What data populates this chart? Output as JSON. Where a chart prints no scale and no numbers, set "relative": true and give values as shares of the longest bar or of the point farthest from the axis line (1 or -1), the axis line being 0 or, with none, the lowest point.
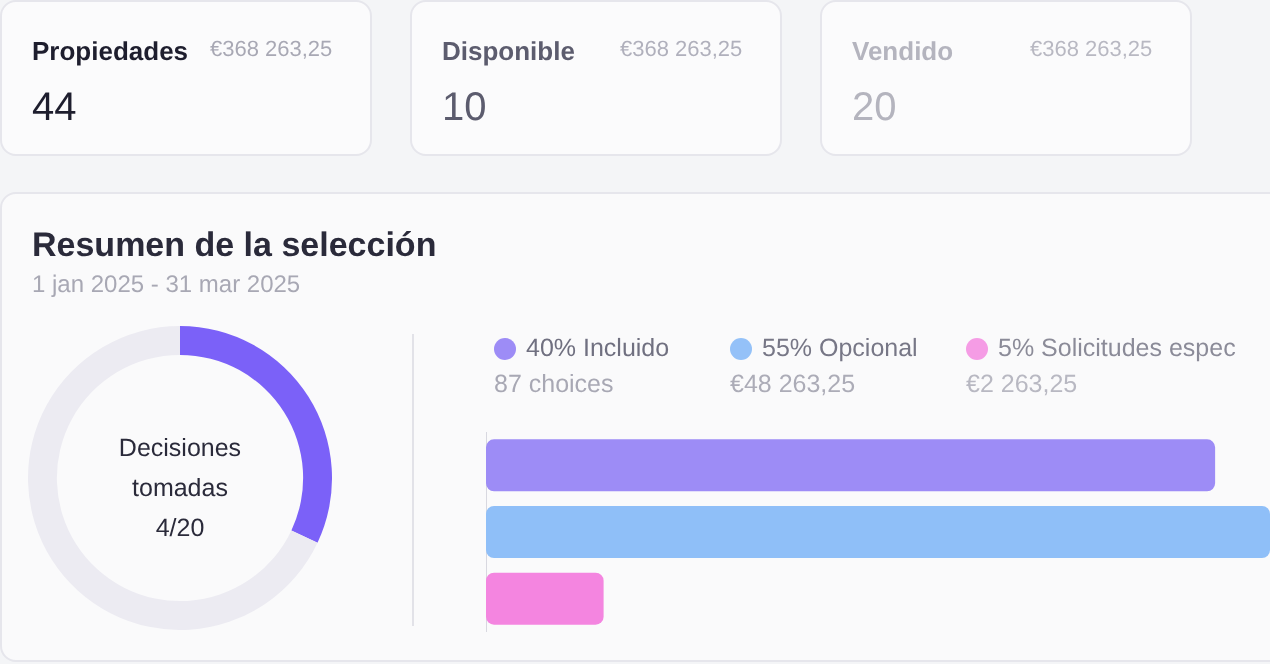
{
  "chart_data": [
    {
      "type": "other",
      "title": "Propiedades",
      "annotations": [
        "€368 263,25",
        "44"
      ]
    },
    {
      "type": "other",
      "title": "Disponible",
      "annotations": [
        "€368 263,25",
        "10"
      ]
    },
    {
      "type": "other",
      "title": "Vendido",
      "annotations": [
        "€368 263,25",
        "20"
      ]
    },
    {
      "type": "donut",
      "title": "Resumen de la selección",
      "subtitle": "1 jan 2025 - 31 mar 2025",
      "categories": [
        null,
        null
      ],
      "values": [
        32,
        68
      ],
      "colors": [
        "#7b61f8",
        "#ecebf2"
      ],
      "annotations": [
        "Decisiones",
        "tomadas",
        "4/20"
      ]
    },
    {
      "type": "bar",
      "orientation": "horizontal",
      "stacked": true,
      "relative": true,
      "categories": [
        null,
        null,
        null
      ],
      "legend": "top left",
      "annotations": [
        "87 choices",
        "€48 263,25",
        "€2 263,25"
      ],
      "series": [
        {
          "name": "40% Incluido",
          "color": "#9d8cf6",
          "values": [
            0.93,
            null,
            null
          ]
        },
        {
          "name": "55% Opcional",
          "color": "#8fbff8",
          "values": [
            null,
            1,
            null
          ]
        },
        {
          "name": "5% Solicitudes espec",
          "color": "#f485e0",
          "values": [
            null,
            null,
            0.15
          ]
        }
      ]
    }
  ]
}
